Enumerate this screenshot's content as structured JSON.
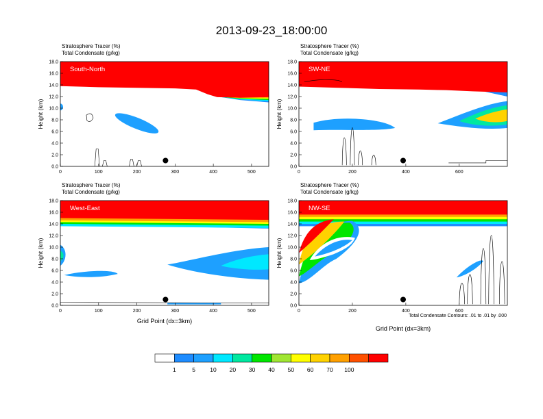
{
  "figure": {
    "title": "2013-09-23_18:00:00",
    "contour_note": "Total Condensate Contours: .01 to .01 by .000",
    "xlabel": "Grid Point (dx=3km)"
  },
  "colors": {
    "levels": [
      "#ffffff",
      "#1e8cff",
      "#1ea0ff",
      "#00e8ff",
      "#00e8a0",
      "#00e600",
      "#a0e632",
      "#ffff00",
      "#ffd200",
      "#ffa000",
      "#ff5000",
      "#ff0000"
    ]
  },
  "colorbar": {
    "labels": [
      "1",
      "5",
      "10",
      "20",
      "30",
      "40",
      "50",
      "60",
      "70",
      "100"
    ]
  },
  "chart_data": [
    {
      "type": "heatmap",
      "title": "South-North",
      "subtitle_line1": "Stratosphere Tracer   (%)",
      "subtitle_line2": "Total Condensate   (g/kg)",
      "ylabel": "Height (km)",
      "xlabel": "",
      "xlim": [
        0,
        545
      ],
      "ylim": [
        0,
        18
      ],
      "xticks": [
        0,
        100,
        200,
        300,
        400,
        500
      ],
      "yticks": [
        "0.0",
        "2.0",
        "4.0",
        "6.0",
        "8.0",
        "10.0",
        "12.0",
        "14.0",
        "16.0",
        "18.0"
      ],
      "marker_x": 275,
      "marker_y": 1.0
    },
    {
      "type": "heatmap",
      "title": "SW-NE",
      "subtitle_line1": "Stratosphere Tracer   (%)",
      "subtitle_line2": "Total Condensate   (g/kg)",
      "ylabel": "Height (km)",
      "xlabel": "",
      "xlim": [
        0,
        780
      ],
      "ylim": [
        0,
        18
      ],
      "xticks": [
        0,
        200,
        400,
        600
      ],
      "yticks": [
        "0.0",
        "2.0",
        "4.0",
        "6.0",
        "8.0",
        "10.0",
        "12.0",
        "14.0",
        "16.0",
        "18.0"
      ],
      "marker_x": 390,
      "marker_y": 1.0
    },
    {
      "type": "heatmap",
      "title": "West-East",
      "subtitle_line1": "Stratosphere Tracer   (%)",
      "subtitle_line2": "Total Condensate   (g/kg)",
      "ylabel": "Height (km)",
      "xlabel": "Grid Point (dx=3km)",
      "xlim": [
        0,
        545
      ],
      "ylim": [
        0,
        18
      ],
      "xticks": [
        0,
        100,
        200,
        300,
        400,
        500
      ],
      "yticks": [
        "0.0",
        "2.0",
        "4.0",
        "6.0",
        "8.0",
        "10.0",
        "12.0",
        "14.0",
        "16.0",
        "18.0"
      ],
      "marker_x": 275,
      "marker_y": 1.0
    },
    {
      "type": "heatmap",
      "title": "NW-SE",
      "subtitle_line1": "Stratosphere Tracer   (%)",
      "subtitle_line2": "Total Condensate   (g/kg)",
      "ylabel": "Height (km)",
      "xlabel": "Grid Point (dx=3km)",
      "xlim": [
        0,
        780
      ],
      "ylim": [
        0,
        18
      ],
      "xticks": [
        0,
        200,
        400,
        600
      ],
      "yticks": [
        "0.0",
        "2.0",
        "4.0",
        "6.0",
        "8.0",
        "10.0",
        "12.0",
        "14.0",
        "16.0",
        "18.0"
      ],
      "marker_x": 390,
      "marker_y": 1.0
    }
  ]
}
